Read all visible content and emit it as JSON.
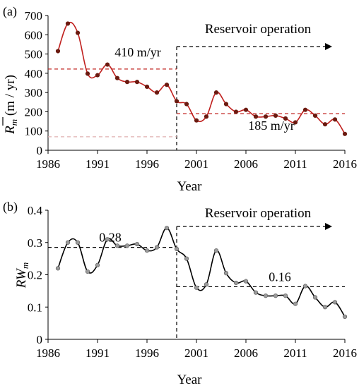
{
  "chart_data": [
    {
      "type": "line",
      "panel_label": "(a)",
      "xlabel": "Year",
      "ylabel": "R̄m (m / yr)",
      "ylabel_main": "R",
      "ylabel_sub": "m",
      "ylabel_tail": " (m / yr)",
      "xlim": [
        1986,
        2016
      ],
      "ylim": [
        0,
        700
      ],
      "x_ticks": [
        "1986",
        "1991",
        "1996",
        "2001",
        "2006",
        "2011",
        "2016"
      ],
      "y_ticks": [
        "0",
        "100",
        "200",
        "300",
        "400",
        "500",
        "600",
        "700"
      ],
      "series": [
        {
          "color": "#c0201e",
          "marker_color": "#6b1a10",
          "x": [
            1987,
            1988,
            1989,
            1990,
            1991,
            1992,
            1993,
            1994,
            1995,
            1996,
            1997,
            1998,
            1999,
            2000,
            2001,
            2002,
            2003,
            2004,
            2005,
            2006,
            2007,
            2008,
            2009,
            2010,
            2011,
            2012,
            2013,
            2014,
            2015,
            2016
          ],
          "y": [
            515,
            658,
            610,
            398,
            390,
            445,
            375,
            355,
            355,
            330,
            300,
            340,
            255,
            240,
            155,
            175,
            300,
            240,
            200,
            210,
            175,
            175,
            180,
            165,
            145,
            210,
            180,
            135,
            160,
            85
          ]
        }
      ],
      "reference_lines": [
        {
          "label": "410 m/yr",
          "y": 422,
          "x_range": [
            1986,
            1999
          ],
          "color": "#c0201e"
        },
        {
          "label": "185 m/yr",
          "y": 190,
          "x_range": [
            1999,
            2016
          ],
          "color": "#c0201e"
        },
        {
          "label": "",
          "y": 70,
          "x_range": [
            1986,
            1999
          ],
          "color": "#e0b0b0"
        }
      ],
      "annotation": {
        "text": "Reservoir operation",
        "x_start": 1999
      },
      "grid": false
    },
    {
      "type": "line",
      "panel_label": "(b)",
      "xlabel": "Year",
      "ylabel": "RWm",
      "ylabel_main": "RW",
      "ylabel_sub": "m",
      "xlim": [
        1986,
        2016
      ],
      "ylim": [
        0,
        0.4
      ],
      "x_ticks": [
        "1986",
        "1991",
        "1996",
        "2001",
        "2006",
        "2011",
        "2016"
      ],
      "y_ticks": [
        "0",
        "0.1",
        "0.2",
        "0.3",
        "0.4"
      ],
      "series": [
        {
          "color": "#000000",
          "marker_color": "#9a9a9a",
          "x": [
            1987,
            1988,
            1989,
            1990,
            1991,
            1992,
            1993,
            1994,
            1995,
            1996,
            1997,
            1998,
            1999,
            2000,
            2001,
            2002,
            2003,
            2004,
            2005,
            2006,
            2007,
            2008,
            2009,
            2010,
            2011,
            2012,
            2013,
            2014,
            2015,
            2016
          ],
          "y": [
            0.22,
            0.3,
            0.3,
            0.21,
            0.23,
            0.31,
            0.29,
            0.29,
            0.295,
            0.275,
            0.285,
            0.345,
            0.28,
            0.25,
            0.16,
            0.17,
            0.275,
            0.205,
            0.175,
            0.18,
            0.145,
            0.135,
            0.135,
            0.135,
            0.11,
            0.165,
            0.13,
            0.1,
            0.115,
            0.07
          ]
        }
      ],
      "reference_lines": [
        {
          "label": "0.28",
          "y": 0.285,
          "x_range": [
            1986,
            1999
          ],
          "color": "#000000"
        },
        {
          "label": "0.16",
          "y": 0.163,
          "x_range": [
            1999,
            2016
          ],
          "color": "#000000"
        }
      ],
      "annotation": {
        "text": "Reservoir operation",
        "x_start": 1999
      },
      "grid": false
    }
  ]
}
